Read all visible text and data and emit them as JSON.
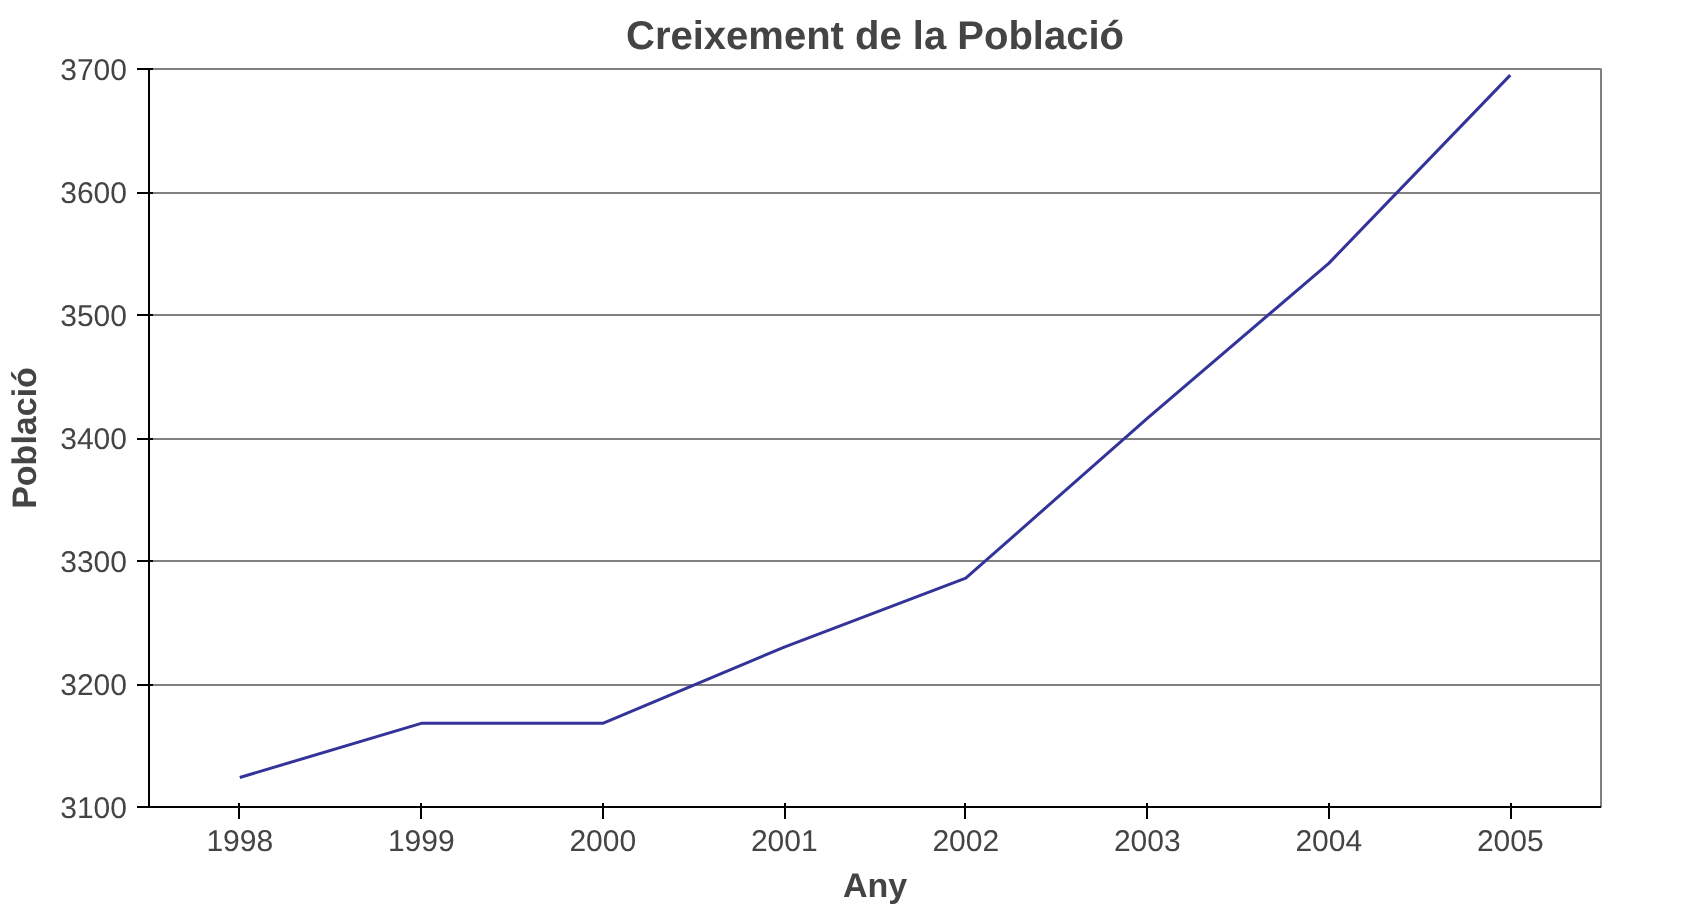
{
  "chart_data": {
    "type": "line",
    "title": "Creixement de la Població",
    "xlabel": "Any",
    "ylabel": "Població",
    "categories": [
      "1998",
      "1999",
      "2000",
      "2001",
      "2002",
      "2003",
      "2004",
      "2005"
    ],
    "series": [
      {
        "color": "#333399",
        "values": [
          3124,
          3168,
          3168,
          3230,
          3286,
          3416,
          3542,
          3695
        ]
      }
    ],
    "ylim": [
      3100,
      3700
    ],
    "yticks": [
      3100,
      3200,
      3300,
      3400,
      3500,
      3600,
      3700
    ],
    "grid": "y"
  }
}
